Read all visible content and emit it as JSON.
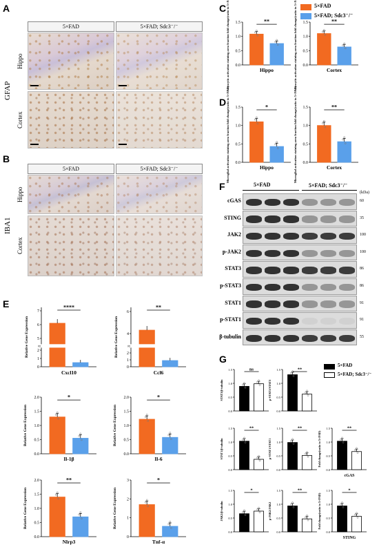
{
  "panels": {
    "A": "A",
    "B": "B",
    "C": "C",
    "D": "D",
    "E": "E",
    "F": "F",
    "G": "G"
  },
  "micro": {
    "col1": "5×FAD",
    "col2": "5×FAD; Sdc3⁻/⁻",
    "row_hippo": "Hippo",
    "row_cortex": "Cortex",
    "stain_A": "GFAP",
    "stain_B": "IBA1"
  },
  "legend_top": {
    "wt": "5×FAD",
    "ko": "5×FAD; Sdc3⁻/⁻",
    "wt_color": "#f26a21",
    "ko_color": "#5aa0ea"
  },
  "panelC": {
    "ylabel": "Astrocytic activation staining area fraction fold change(ratio to 5×FAD)",
    "charts": [
      {
        "xlabel": "Hippo",
        "sig": "**",
        "values": [
          1.08,
          0.75
        ],
        "ymax": 1.5,
        "ticks": [
          "0.0",
          "0.5",
          "1.0",
          "1.5"
        ]
      },
      {
        "xlabel": "Cortex",
        "sig": "**",
        "values": [
          1.1,
          0.63
        ],
        "ymax": 1.5,
        "ticks": [
          "0.0",
          "0.5",
          "1.0",
          "1.5"
        ]
      }
    ]
  },
  "panelD": {
    "ylabel": "Microglial activation staining area fraction fold change(ratio to 5×FAD)",
    "charts": [
      {
        "xlabel": "Hippo",
        "sig": "*",
        "values": [
          1.1,
          0.43
        ],
        "ymax": 1.5,
        "ticks": [
          "0.0",
          "0.5",
          "1.0",
          "1.5"
        ]
      },
      {
        "xlabel": "Cortex",
        "sig": "**",
        "values": [
          1.0,
          0.56
        ],
        "ymax": 1.5,
        "ticks": [
          "0.0",
          "0.5",
          "1.0",
          "1.5"
        ]
      }
    ]
  },
  "panelE": {
    "ylabel": "Relative Gene Expression",
    "charts": [
      {
        "gene": "Cxcl10",
        "sig": "****",
        "ticks": [
          "0",
          "1",
          "2",
          "5",
          "6",
          "7"
        ]
      },
      {
        "gene": "Ccl6",
        "sig": "**",
        "ticks": [
          "0",
          "1",
          "2",
          "4",
          "6"
        ]
      },
      {
        "gene": "Il-1β",
        "sig": "*",
        "values": [
          1.3,
          0.55
        ],
        "ymax": 2.0,
        "ticks": [
          "0.0",
          "0.5",
          "1.0",
          "1.5",
          "2.0"
        ]
      },
      {
        "gene": "Il-6",
        "sig": "*",
        "values": [
          1.22,
          0.58
        ],
        "ymax": 2.0,
        "ticks": [
          "0.0",
          "0.5",
          "1.0",
          "1.5",
          "2.0"
        ]
      },
      {
        "gene": "Nlrp3",
        "sig": "**",
        "values": [
          1.4,
          0.7
        ],
        "ymax": 2.0,
        "ticks": [
          "0.0",
          "0.5",
          "1.0",
          "1.5",
          "2.0"
        ]
      },
      {
        "gene": "Tnf-α",
        "sig": "*",
        "values": [
          1.7,
          0.55
        ],
        "ymax": 3,
        "ticks": [
          "0",
          "1",
          "2",
          "3"
        ]
      }
    ]
  },
  "panelF": {
    "group1": "5×FAD",
    "group2": "5×FAD; Sdc3⁻/⁻",
    "kda_header": "(kDa)",
    "proteins": [
      {
        "name": "cGAS",
        "kda": "60"
      },
      {
        "name": "STING",
        "kda": "35"
      },
      {
        "name": "JAK2",
        "kda": "100"
      },
      {
        "name": "p-JAK2",
        "kda": "100"
      },
      {
        "name": "STAT3",
        "kda": "86"
      },
      {
        "name": "p-STAT3",
        "kda": "86"
      },
      {
        "name": "STAT1",
        "kda": "91"
      },
      {
        "name": "p-STAT1",
        "kda": "91"
      },
      {
        "name": "β-tubulin",
        "kda": "55"
      }
    ]
  },
  "panelG": {
    "legend_wt": "5×FAD",
    "legend_ko": "5×FAD; Sdc3⁻/⁻",
    "charts": [
      {
        "ylabel": "STAT3/β-tubulin",
        "sig": "ns",
        "values": [
          0.95,
          1.05
        ]
      },
      {
        "ylabel": "p-STAT3/STAT3",
        "sig": "**",
        "values": [
          1.4,
          0.65
        ]
      },
      {
        "ylabel": "STAT1/β-tubulin",
        "sig": "**",
        "values": [
          1.1,
          0.4
        ]
      },
      {
        "ylabel": "p-STAT1/STAT1",
        "sig": "**",
        "values": [
          1.05,
          0.55
        ]
      },
      {
        "ylabel": "Fold change(ratio to 5×FAD)",
        "xlabel": "cGAS",
        "sig": "**",
        "values": [
          1.1,
          0.7
        ]
      },
      {
        "ylabel": "JAK2/β-tubulin",
        "sig": "*",
        "values": [
          0.7,
          0.8
        ]
      },
      {
        "ylabel": "p-JAK2/JAK2",
        "sig": "**",
        "values": [
          1.0,
          0.5
        ]
      },
      {
        "ylabel": "Fold change(ratio to 5×FAD)",
        "xlabel": "STING",
        "sig": "*",
        "values": [
          1.0,
          0.6
        ]
      }
    ]
  }
}
